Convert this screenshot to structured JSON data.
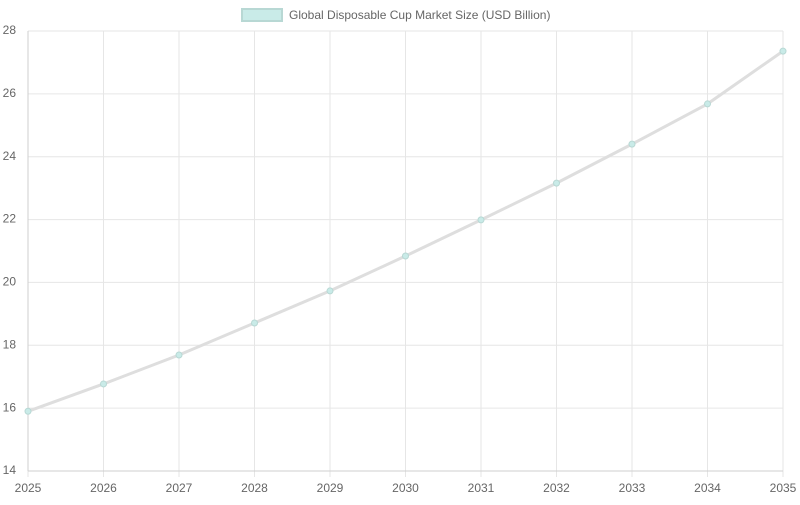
{
  "chart_data": {
    "type": "line",
    "categories": [
      "2025",
      "2026",
      "2027",
      "2028",
      "2029",
      "2030",
      "2031",
      "2032",
      "2033",
      "2034",
      "2035"
    ],
    "series": [
      {
        "name": "Global Disposable Cup Market Size (USD Billion)",
        "color": "#c9ebe8",
        "values": [
          15.9,
          16.77,
          17.69,
          18.71,
          19.73,
          20.84,
          21.99,
          23.16,
          24.4,
          25.68,
          27.36
        ]
      }
    ],
    "ylim": [
      14,
      28
    ],
    "yticks": [
      14,
      16,
      18,
      20,
      22,
      24,
      26,
      28
    ],
    "grid": true,
    "legend": "top"
  }
}
